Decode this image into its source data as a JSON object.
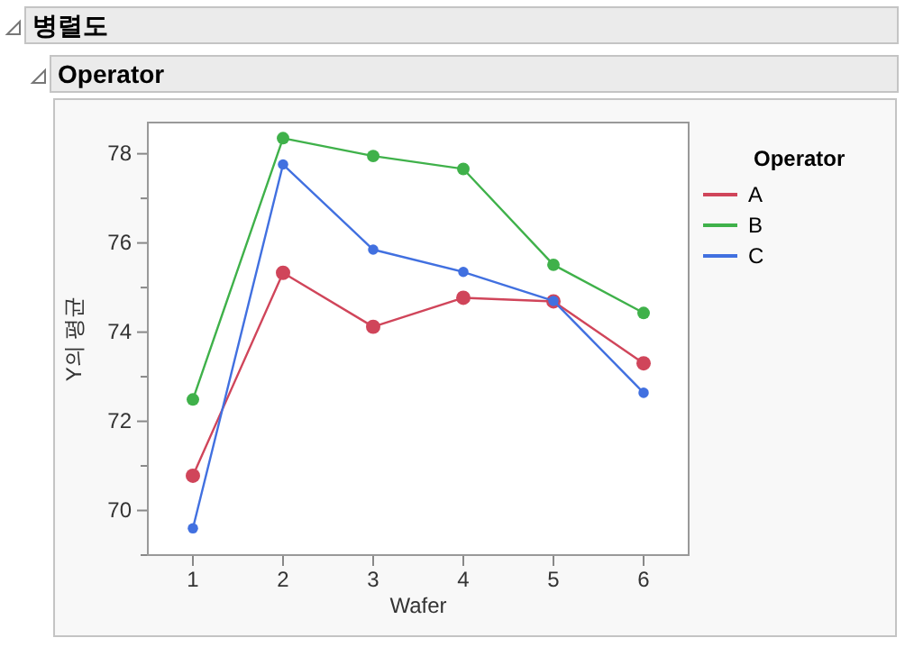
{
  "chart_data": {
    "type": "line",
    "title": "병렬도",
    "subtitle": "Operator",
    "xlabel": "Wafer",
    "ylabel": "Y의 평균",
    "legend_title": "Operator",
    "legend": "right",
    "marker": "circle",
    "grid": false,
    "x": [
      1,
      2,
      3,
      4,
      5,
      6
    ],
    "xlim": [
      0.5,
      6.5
    ],
    "xticks": [
      1,
      2,
      3,
      4,
      5,
      6
    ],
    "ylim": [
      69,
      78.7
    ],
    "yticks": [
      {
        "value": 69,
        "label": null
      },
      70,
      {
        "value": 71,
        "label": null
      },
      72,
      {
        "value": 73,
        "label": null
      },
      74,
      {
        "value": 75,
        "label": null
      },
      76,
      {
        "value": 77,
        "label": null
      },
      78
    ],
    "series": [
      {
        "name": "A",
        "color": "#d0455a",
        "values": [
          70.78,
          75.33,
          74.12,
          74.77,
          74.69,
          73.3
        ]
      },
      {
        "name": "B",
        "color": "#3fb14a",
        "values": [
          72.49,
          78.35,
          77.95,
          77.66,
          75.51,
          74.43
        ]
      },
      {
        "name": "C",
        "color": "#4170e0",
        "values": [
          69.6,
          77.76,
          75.85,
          75.35,
          74.7,
          72.64
        ]
      }
    ]
  }
}
